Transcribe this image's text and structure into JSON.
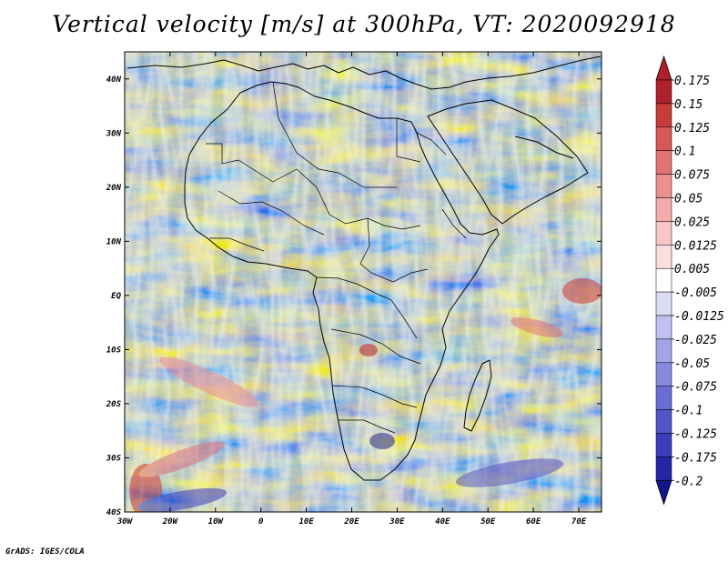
{
  "title": "Vertical velocity [m/s] at 300hPa, VT: 2020092918",
  "footer": "GrADS: IGES/COLA",
  "map": {
    "lat_ticks": [
      "40N",
      "30N",
      "20N",
      "10N",
      "EQ",
      "10S",
      "20S",
      "30S",
      "40S"
    ],
    "lon_ticks": [
      "30W",
      "20W",
      "10W",
      "0",
      "10E",
      "20E",
      "30E",
      "40E",
      "50E",
      "60E",
      "70E"
    ],
    "lon_range": [
      -30,
      75
    ],
    "lat_range": [
      -40,
      45
    ]
  },
  "colorbar": {
    "labels": [
      "0.175",
      "0.15",
      "0.125",
      "0.1",
      "0.075",
      "0.05",
      "0.025",
      "0.0125",
      "0.005",
      "-0.005",
      "-0.0125",
      "-0.025",
      "-0.05",
      "-0.075",
      "-0.1",
      "-0.125",
      "-0.175",
      "-0.2"
    ],
    "colors": [
      "#b0202a",
      "#c93a3a",
      "#d95757",
      "#e37373",
      "#ec8f8f",
      "#f2abab",
      "#f7c5c5",
      "#fbdede",
      "#ffffff",
      "#dcdcf5",
      "#bfc0ef",
      "#a3a4e8",
      "#8789df",
      "#6b6dd6",
      "#5254ca",
      "#3b3dbb",
      "#2426a8",
      "#14168f"
    ],
    "top_arrow_color": "#b0202a",
    "bottom_arrow_color": "#14168f"
  }
}
